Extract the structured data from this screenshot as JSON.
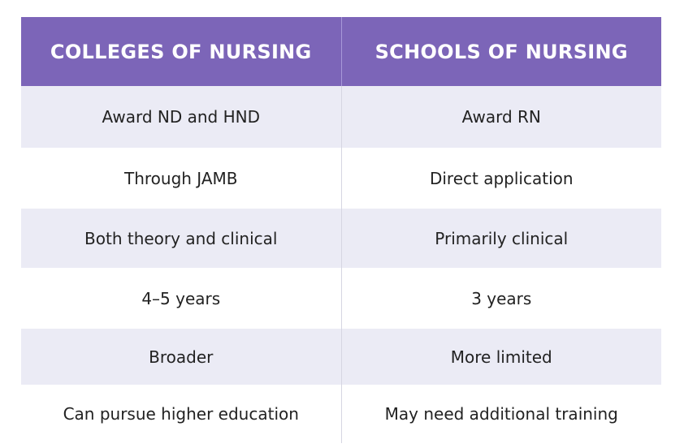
{
  "table": {
    "headers": [
      "COLLEGES OF NURSING",
      "SCHOOLS OF NURSING"
    ],
    "rows": [
      [
        "Award ND and HND",
        "Award RN"
      ],
      [
        "Through JAMB",
        "Direct application"
      ],
      [
        "Both theory and clinical",
        "Primarily clinical"
      ],
      [
        "4–5 years",
        "3 years"
      ],
      [
        "Broader",
        "More limited"
      ],
      [
        "Can pursue higher education",
        "May need additional training"
      ]
    ]
  },
  "colors": {
    "header_bg": "#7c65b8",
    "header_text": "#ffffff",
    "row_shade": "#ebebf5",
    "row_plain": "#ffffff"
  }
}
